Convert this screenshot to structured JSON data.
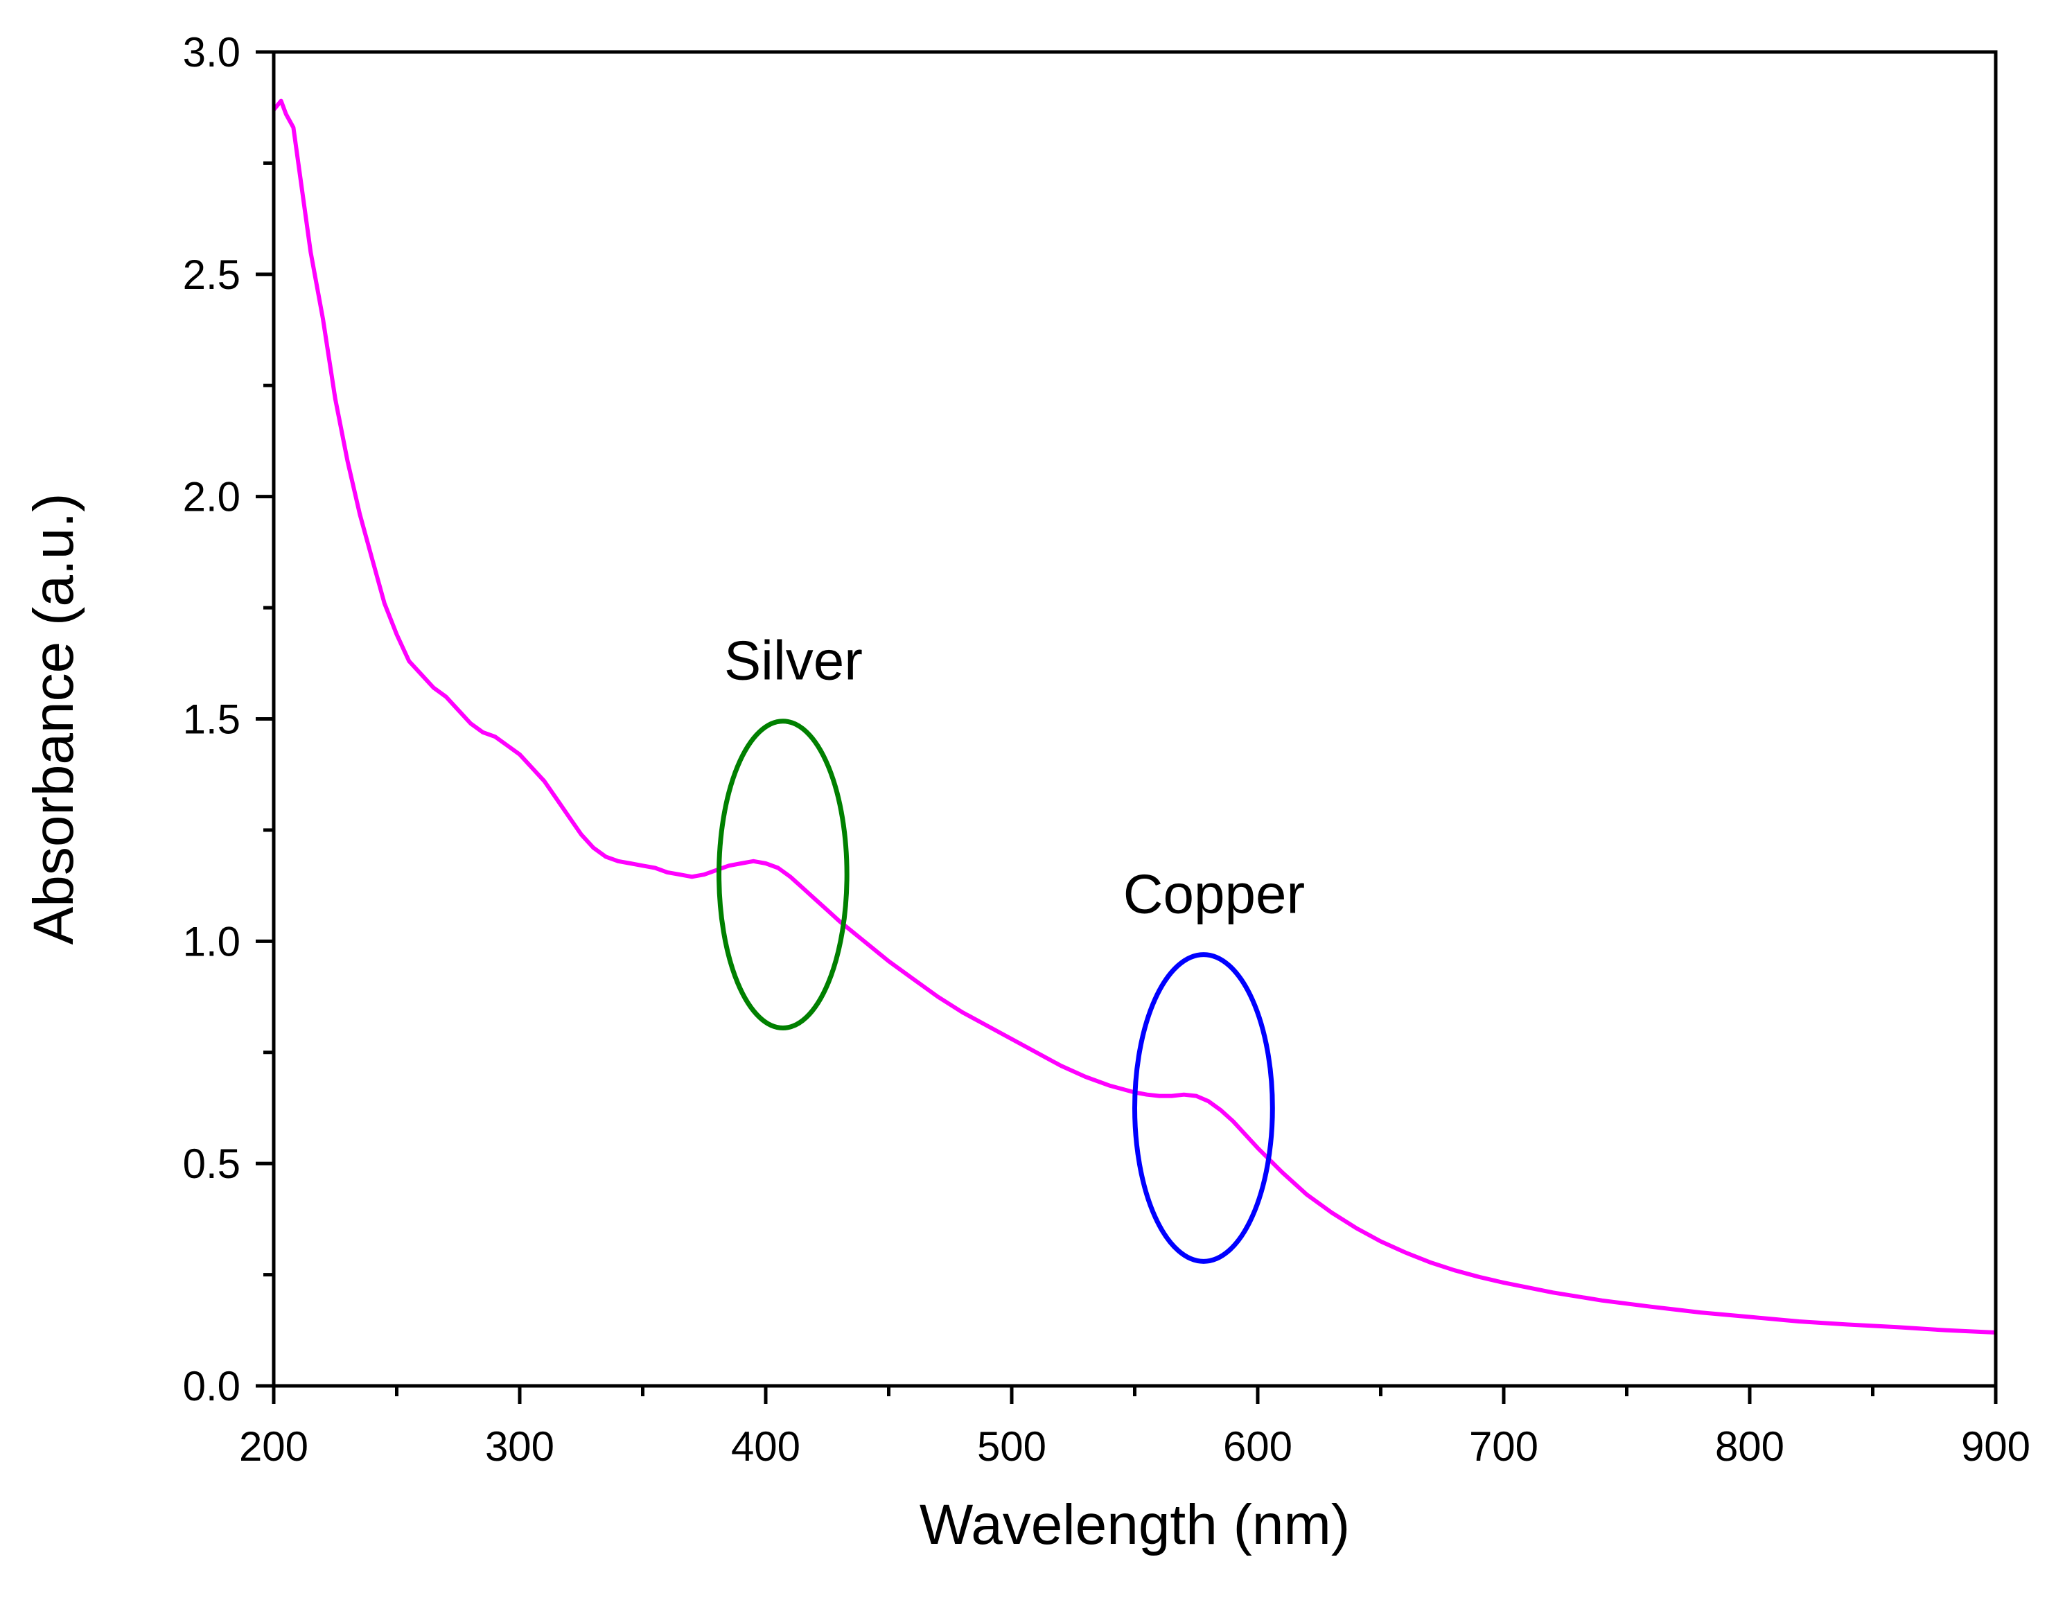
{
  "chart_data": {
    "type": "line",
    "title": "",
    "xlabel": "Wavelength (nm)",
    "ylabel": "Absorbance (a.u.)",
    "xlim": [
      200,
      900
    ],
    "ylim": [
      0.0,
      3.0
    ],
    "x_ticks": [
      200,
      300,
      400,
      500,
      600,
      700,
      800,
      900
    ],
    "x_tick_labels": [
      "200",
      "300",
      "400",
      "500",
      "600",
      "700",
      "800",
      "900"
    ],
    "y_ticks": [
      0.0,
      0.5,
      1.0,
      1.5,
      2.0,
      2.5,
      3.0
    ],
    "y_tick_labels": [
      "0.0",
      "0.5",
      "1.0",
      "1.5",
      "2.0",
      "2.5",
      "3.0"
    ],
    "grid": false,
    "series": [
      {
        "name": "Absorbance",
        "color": "#ff00ff",
        "x": [
          200,
          203,
          205,
          208,
          210,
          215,
          220,
          225,
          230,
          235,
          240,
          245,
          250,
          255,
          260,
          265,
          270,
          275,
          280,
          285,
          290,
          295,
          300,
          305,
          310,
          315,
          320,
          325,
          330,
          335,
          340,
          345,
          350,
          355,
          360,
          365,
          370,
          375,
          380,
          385,
          390,
          395,
          400,
          405,
          410,
          415,
          420,
          425,
          430,
          440,
          450,
          460,
          470,
          480,
          490,
          500,
          510,
          520,
          530,
          540,
          550,
          555,
          560,
          565,
          570,
          575,
          580,
          585,
          590,
          595,
          600,
          610,
          620,
          630,
          640,
          650,
          660,
          670,
          680,
          690,
          700,
          720,
          740,
          760,
          780,
          800,
          820,
          840,
          860,
          880,
          900
        ],
        "y": [
          2.87,
          2.89,
          2.86,
          2.83,
          2.75,
          2.55,
          2.4,
          2.22,
          2.08,
          1.96,
          1.86,
          1.76,
          1.69,
          1.63,
          1.6,
          1.57,
          1.55,
          1.52,
          1.49,
          1.47,
          1.46,
          1.44,
          1.42,
          1.39,
          1.36,
          1.32,
          1.28,
          1.24,
          1.21,
          1.19,
          1.18,
          1.175,
          1.17,
          1.165,
          1.155,
          1.15,
          1.145,
          1.15,
          1.16,
          1.17,
          1.175,
          1.18,
          1.175,
          1.165,
          1.145,
          1.12,
          1.095,
          1.07,
          1.045,
          1.0,
          0.955,
          0.915,
          0.875,
          0.84,
          0.81,
          0.78,
          0.75,
          0.72,
          0.695,
          0.675,
          0.66,
          0.655,
          0.652,
          0.652,
          0.655,
          0.652,
          0.64,
          0.62,
          0.595,
          0.565,
          0.535,
          0.48,
          0.43,
          0.39,
          0.355,
          0.325,
          0.3,
          0.278,
          0.26,
          0.245,
          0.232,
          0.21,
          0.192,
          0.178,
          0.165,
          0.155,
          0.145,
          0.138,
          0.132,
          0.125,
          0.12
        ]
      }
    ],
    "annotations": [
      {
        "label": "Silver",
        "color": "#008000",
        "cx": 407,
        "cy": 1.15,
        "rx": 26,
        "ry": 0.345
      },
      {
        "label": "Copper",
        "color": "#0000ff",
        "cx": 578,
        "cy": 0.625,
        "rx": 28,
        "ry": 0.345
      }
    ]
  }
}
